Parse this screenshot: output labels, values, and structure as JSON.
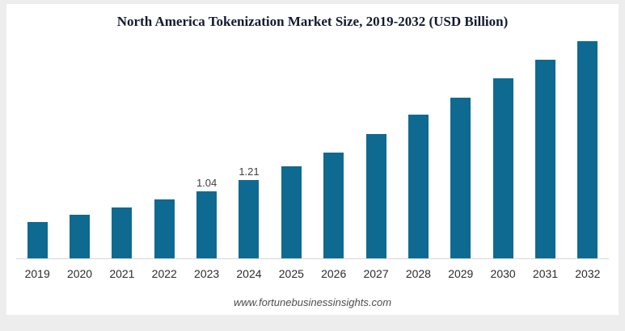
{
  "chart": {
    "title": "North America Tokenization Market Size, 2019-2032 (USD Billion)",
    "footer": "www.fortunebusinessinsights.com",
    "bar_color": "#0e6a91"
  },
  "chart_data": {
    "type": "bar",
    "title": "North America Tokenization Market Size, 2019-2032 (USD Billion)",
    "categories": [
      "2019",
      "2020",
      "2021",
      "2022",
      "2023",
      "2024",
      "2025",
      "2026",
      "2027",
      "2028",
      "2029",
      "2030",
      "2031",
      "2032"
    ],
    "values": [
      0.56,
      0.68,
      0.79,
      0.91,
      1.04,
      1.21,
      1.42,
      1.64,
      1.93,
      2.22,
      2.49,
      2.79,
      3.07,
      3.36
    ],
    "data_labels": {
      "2023": "1.04",
      "2024": "1.21"
    },
    "xlabel": "",
    "ylabel": "",
    "ylim": [
      0,
      3.5
    ],
    "grid": false,
    "legend": "none",
    "source_caption": "www.fortunebusinessinsights.com"
  }
}
